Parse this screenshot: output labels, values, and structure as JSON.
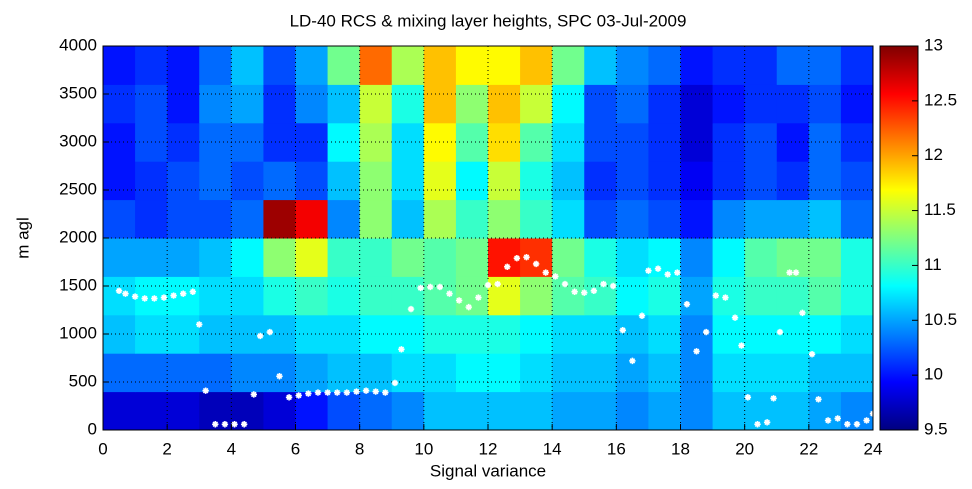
{
  "chart_data": {
    "type": "heatmap",
    "title": "LD-40 RCS & mixing layer heights, SPC 03-Jul-2009",
    "xlabel": "Signal variance",
    "ylabel": "m agl",
    "xlim": [
      0,
      24
    ],
    "xticks": [
      0,
      2,
      4,
      6,
      8,
      10,
      12,
      14,
      16,
      18,
      20,
      22,
      24
    ],
    "ylim": [
      0,
      4000
    ],
    "yticks": [
      0,
      500,
      1000,
      1500,
      2000,
      2500,
      3000,
      3500,
      4000
    ],
    "grid": true,
    "colormap": "jet",
    "clim": [
      9.5,
      13
    ],
    "cticks": [
      9.5,
      10,
      10.5,
      11,
      11.5,
      12,
      12.5,
      13
    ],
    "x": [
      0.5,
      1.5,
      2.5,
      3.5,
      4.5,
      5.5,
      6.5,
      7.5,
      8.5,
      9.5,
      10.5,
      11.5,
      12.5,
      13.5,
      14.5,
      15.5,
      16.5,
      17.5,
      18.5,
      19.5,
      20.5,
      21.5,
      22.5,
      23.5
    ],
    "y": [
      200,
      600,
      1000,
      1400,
      1800,
      2200,
      2600,
      3000,
      3400,
      3800
    ],
    "z": [
      [
        9.8,
        9.8,
        9.8,
        9.7,
        9.7,
        9.8,
        10.0,
        10.2,
        10.3,
        10.4,
        10.6,
        10.6,
        10.6,
        10.6,
        10.5,
        10.5,
        10.4,
        10.5,
        10.4,
        10.6,
        10.6,
        10.6,
        10.5,
        10.4
      ],
      [
        10.3,
        10.3,
        10.3,
        10.3,
        10.4,
        10.4,
        10.5,
        10.6,
        10.6,
        10.7,
        10.7,
        10.8,
        10.8,
        10.7,
        10.6,
        10.6,
        10.5,
        10.6,
        10.4,
        10.7,
        10.7,
        10.7,
        10.6,
        10.6
      ],
      [
        10.6,
        10.7,
        10.7,
        10.6,
        10.6,
        10.6,
        10.7,
        10.7,
        10.8,
        10.8,
        10.9,
        10.9,
        10.9,
        10.8,
        10.7,
        10.7,
        10.6,
        10.7,
        10.4,
        10.8,
        10.8,
        10.8,
        10.8,
        10.7
      ],
      [
        10.7,
        10.8,
        10.8,
        10.7,
        10.7,
        10.9,
        11.0,
        10.9,
        11.0,
        11.0,
        11.1,
        11.2,
        11.6,
        11.3,
        11.1,
        11.0,
        10.8,
        10.9,
        10.5,
        10.9,
        11.0,
        11.0,
        11.1,
        10.9
      ],
      [
        10.5,
        10.5,
        10.5,
        10.6,
        10.8,
        11.3,
        11.6,
        11.0,
        11.0,
        11.2,
        11.1,
        11.2,
        12.5,
        12.4,
        11.2,
        10.9,
        10.7,
        10.8,
        10.4,
        10.8,
        11.1,
        11.2,
        11.2,
        10.9
      ],
      [
        10.2,
        10.1,
        10.2,
        10.2,
        10.3,
        12.9,
        12.6,
        10.4,
        11.3,
        10.6,
        11.4,
        11.0,
        11.3,
        11.0,
        10.7,
        10.2,
        10.3,
        10.2,
        10.0,
        10.4,
        10.5,
        10.5,
        10.6,
        10.3
      ],
      [
        10.0,
        10.1,
        10.2,
        10.3,
        10.2,
        10.3,
        10.2,
        10.6,
        11.3,
        10.7,
        11.6,
        10.8,
        11.5,
        10.9,
        10.6,
        10.1,
        10.2,
        10.1,
        9.9,
        10.1,
        10.2,
        10.1,
        10.3,
        10.2
      ],
      [
        10.0,
        10.2,
        10.1,
        10.3,
        10.3,
        10.1,
        10.1,
        10.8,
        11.4,
        10.7,
        11.7,
        11.1,
        11.8,
        11.1,
        10.7,
        10.2,
        10.2,
        10.1,
        9.8,
        10.1,
        10.2,
        10.0,
        10.3,
        10.1
      ],
      [
        10.1,
        10.2,
        10.0,
        10.4,
        10.5,
        10.1,
        10.4,
        10.6,
        11.5,
        10.9,
        11.9,
        11.3,
        11.9,
        11.5,
        10.8,
        10.2,
        10.3,
        10.1,
        9.8,
        10.0,
        10.1,
        10.1,
        10.2,
        10.0
      ],
      [
        10.0,
        10.1,
        10.0,
        10.3,
        10.6,
        10.2,
        10.5,
        11.2,
        12.2,
        11.4,
        11.9,
        11.7,
        11.7,
        11.9,
        11.2,
        10.6,
        10.4,
        10.3,
        10.0,
        10.1,
        10.1,
        10.3,
        10.3,
        10.1
      ]
    ],
    "overlay": {
      "type": "scatter",
      "color": "#ffffff",
      "marker": "star",
      "x": [
        0.5,
        0.7,
        1,
        1.3,
        1.6,
        1.9,
        2.2,
        2.5,
        2.8,
        3,
        3.2,
        3.5,
        3.8,
        4.1,
        4.4,
        4.7,
        4.9,
        5.2,
        5.5,
        5.8,
        6.1,
        6.4,
        6.7,
        7,
        7.3,
        7.6,
        7.9,
        8.2,
        8.5,
        8.8,
        9.1,
        9.3,
        9.6,
        9.9,
        10.2,
        10.5,
        10.8,
        11.1,
        11.4,
        11.7,
        12,
        12.3,
        12.6,
        12.9,
        13.2,
        13.5,
        13.8,
        14.1,
        14.4,
        14.7,
        15,
        15.3,
        15.6,
        15.9,
        16.2,
        16.5,
        16.8,
        17,
        17.3,
        17.6,
        17.9,
        18.2,
        18.5,
        18.8,
        19.1,
        19.4,
        19.7,
        19.9,
        20.1,
        20.4,
        20.7,
        20.9,
        21.1,
        21.4,
        21.6,
        21.8,
        22.1,
        22.3,
        22.6,
        22.9,
        23.2,
        23.5,
        23.8,
        24
      ],
      "values": [
        1450,
        1420,
        1390,
        1370,
        1370,
        1380,
        1400,
        1420,
        1440,
        1100,
        410,
        60,
        60,
        60,
        60,
        370,
        980,
        1020,
        560,
        340,
        360,
        380,
        390,
        390,
        390,
        390,
        400,
        410,
        400,
        390,
        490,
        840,
        1260,
        1480,
        1490,
        1490,
        1420,
        1350,
        1280,
        1380,
        1510,
        1520,
        1700,
        1790,
        1800,
        1730,
        1640,
        1600,
        1520,
        1440,
        1430,
        1450,
        1520,
        1500,
        1040,
        720,
        1190,
        1660,
        1680,
        1620,
        1640,
        1310,
        820,
        1020,
        1400,
        1380,
        1170,
        880,
        340,
        60,
        80,
        330,
        1020,
        1640,
        1640,
        1220,
        790,
        320,
        100,
        120,
        60,
        60,
        100,
        170
      ]
    }
  }
}
